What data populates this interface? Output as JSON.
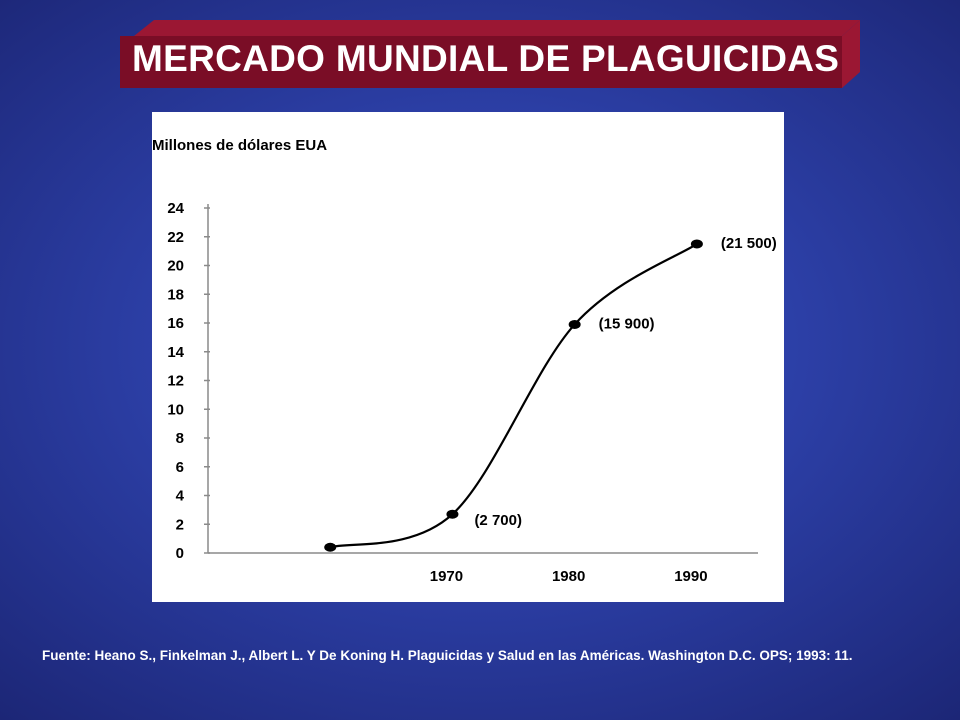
{
  "slide": {
    "title": "MERCADO MUNDIAL DE PLAGUICIDAS",
    "source": "Fuente:  Heano S., Finkelman J., Albert L. Y De Koning H.  Plaguicidas y Salud en las Américas.  Washington D.C. OPS; 1993: 11."
  },
  "colors": {
    "background": "#2c3fa6",
    "banner": "#7a0d26",
    "banner_side": "#9b1733",
    "chart_bg": "#ffffff",
    "ink": "#000000"
  },
  "chart_data": {
    "type": "line",
    "ylabel": "Millones de dólares EUA",
    "xlabel": "",
    "ylim": [
      0,
      24
    ],
    "y_ticks": [
      "0",
      "2",
      "4",
      "6",
      "8",
      "10",
      "12",
      "14",
      "16",
      "18",
      "20",
      "22",
      "24"
    ],
    "xlim": [
      1950,
      1995
    ],
    "x_ticks": [
      {
        "label": "1970",
        "x": 1970
      },
      {
        "label": "1980",
        "x": 1980
      },
      {
        "label": "1990",
        "x": 1990
      }
    ],
    "grid": false,
    "series": [
      {
        "points": [
          {
            "x": 1960,
            "y": 0.4,
            "label": ""
          },
          {
            "x": 1970,
            "y": 2.7,
            "label": "(2 700)"
          },
          {
            "x": 1980,
            "y": 15.9,
            "label": "(15 900)"
          },
          {
            "x": 1990,
            "y": 21.5,
            "label": "(21 500)"
          }
        ]
      }
    ]
  }
}
